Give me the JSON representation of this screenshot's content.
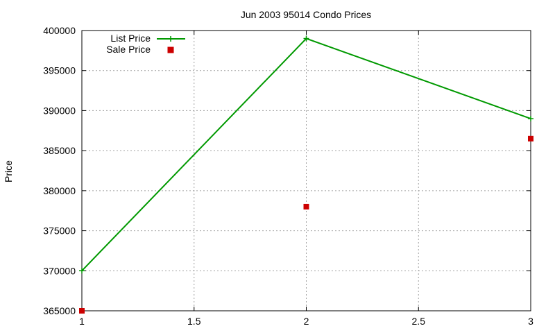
{
  "chart_data": {
    "type": "line",
    "title": "Jun 2003 95014 Condo Prices",
    "xlabel": "",
    "ylabel": "Price",
    "xlim": [
      1,
      3
    ],
    "ylim": [
      365000,
      400000
    ],
    "xticks": [
      1,
      1.5,
      2,
      2.5,
      3
    ],
    "xtick_labels": [
      "1",
      "1.5",
      "2",
      "2.5",
      "3"
    ],
    "yticks": [
      365000,
      370000,
      375000,
      380000,
      385000,
      390000,
      395000,
      400000
    ],
    "ytick_labels": [
      "365000",
      "370000",
      "375000",
      "380000",
      "385000",
      "390000",
      "395000",
      "400000"
    ],
    "grid": true,
    "legend_position": "top-left",
    "series": [
      {
        "name": "List Price",
        "style": "line-points",
        "color": "#009900",
        "x": [
          1,
          2,
          3
        ],
        "y": [
          370000,
          399000,
          389000
        ]
      },
      {
        "name": "Sale Price",
        "style": "points",
        "color": "#cc0000",
        "x": [
          1,
          2,
          3
        ],
        "y": [
          365000,
          378000,
          386500
        ]
      }
    ]
  }
}
